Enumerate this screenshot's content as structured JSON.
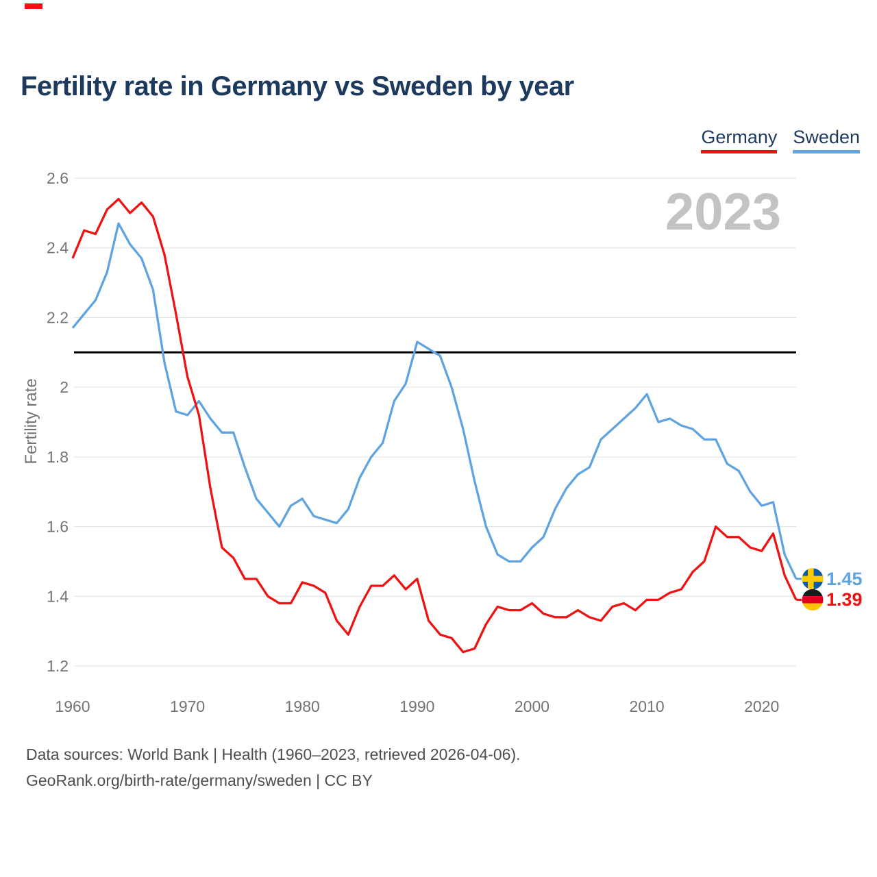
{
  "watermark": "2023",
  "colors": {
    "title_text": "#1d3a5e",
    "axis_text": "#737373",
    "grid": "#e0e0e0",
    "watermark": "#c3c3c3",
    "footer_text": "#4e4e4e",
    "top_mark": "#ee1414"
  },
  "flags": {
    "sweden": {
      "field": "#0b5aa5",
      "cross": "#fecb00"
    },
    "germany": {
      "black": "#1a1a1a",
      "red": "#e1001f",
      "gold": "#ffc400"
    }
  },
  "chart_data": {
    "type": "line",
    "title": "Fertility rate in Germany vs Sweden by year",
    "xlabel": "",
    "ylabel": "Fertility rate",
    "grid": "horizontal",
    "legend_position": "top-right",
    "xlim": [
      1960,
      2023
    ],
    "ylim": [
      1.2,
      2.6
    ],
    "x_ticks": [
      1960,
      1970,
      1980,
      1990,
      2000,
      2010,
      2020
    ],
    "y_ticks": [
      {
        "value": 2.6,
        "label": "2.6"
      },
      {
        "value": 2.4,
        "label": "2.4"
      },
      {
        "value": 2.2,
        "label": "2.2"
      },
      {
        "value": 2.0,
        "label": "2"
      },
      {
        "value": 1.8,
        "label": "1.8"
      },
      {
        "value": 1.6,
        "label": "1.6"
      },
      {
        "value": 1.4,
        "label": "1.4"
      },
      {
        "value": 1.2,
        "label": "1.2"
      }
    ],
    "reference_line": {
      "value": 2.1,
      "color": "#000000"
    },
    "x": [
      1960,
      1961,
      1962,
      1963,
      1964,
      1965,
      1966,
      1967,
      1968,
      1969,
      1970,
      1971,
      1972,
      1973,
      1974,
      1975,
      1976,
      1977,
      1978,
      1979,
      1980,
      1981,
      1982,
      1983,
      1984,
      1985,
      1986,
      1987,
      1988,
      1989,
      1990,
      1991,
      1992,
      1993,
      1994,
      1995,
      1996,
      1997,
      1998,
      1999,
      2000,
      2001,
      2002,
      2003,
      2004,
      2005,
      2006,
      2007,
      2008,
      2009,
      2010,
      2011,
      2012,
      2013,
      2014,
      2015,
      2016,
      2017,
      2018,
      2019,
      2020,
      2021,
      2022,
      2023
    ],
    "series": [
      {
        "name": "Germany",
        "color": "#ee1212",
        "end_label": "1.39",
        "values": [
          2.37,
          2.45,
          2.44,
          2.51,
          2.54,
          2.5,
          2.53,
          2.49,
          2.38,
          2.21,
          2.03,
          1.92,
          1.71,
          1.54,
          1.51,
          1.45,
          1.45,
          1.4,
          1.38,
          1.38,
          1.44,
          1.43,
          1.41,
          1.33,
          1.29,
          1.37,
          1.43,
          1.43,
          1.46,
          1.42,
          1.45,
          1.33,
          1.29,
          1.28,
          1.24,
          1.25,
          1.32,
          1.37,
          1.36,
          1.36,
          1.38,
          1.35,
          1.34,
          1.34,
          1.36,
          1.34,
          1.33,
          1.37,
          1.38,
          1.36,
          1.39,
          1.39,
          1.41,
          1.42,
          1.47,
          1.5,
          1.6,
          1.57,
          1.57,
          1.54,
          1.53,
          1.58,
          1.46,
          1.39
        ]
      },
      {
        "name": "Sweden",
        "color": "#5fa3e1",
        "end_label": "1.45",
        "values": [
          2.17,
          2.21,
          2.25,
          2.33,
          2.47,
          2.41,
          2.37,
          2.28,
          2.07,
          1.93,
          1.92,
          1.96,
          1.91,
          1.87,
          1.87,
          1.77,
          1.68,
          1.64,
          1.6,
          1.66,
          1.68,
          1.63,
          1.62,
          1.61,
          1.65,
          1.74,
          1.8,
          1.84,
          1.96,
          2.01,
          2.13,
          2.11,
          2.09,
          2.0,
          1.88,
          1.73,
          1.6,
          1.52,
          1.5,
          1.5,
          1.54,
          1.57,
          1.65,
          1.71,
          1.75,
          1.77,
          1.85,
          1.88,
          1.91,
          1.94,
          1.98,
          1.9,
          1.91,
          1.89,
          1.88,
          1.85,
          1.85,
          1.78,
          1.76,
          1.7,
          1.66,
          1.67,
          1.52,
          1.45
        ]
      }
    ]
  },
  "footer": {
    "line1": "Data sources: World Bank | Health (1960–2023, retrieved 2026-04-06).",
    "line2": "GeoRank.org/birth-rate/germany/sweden | CC BY"
  }
}
